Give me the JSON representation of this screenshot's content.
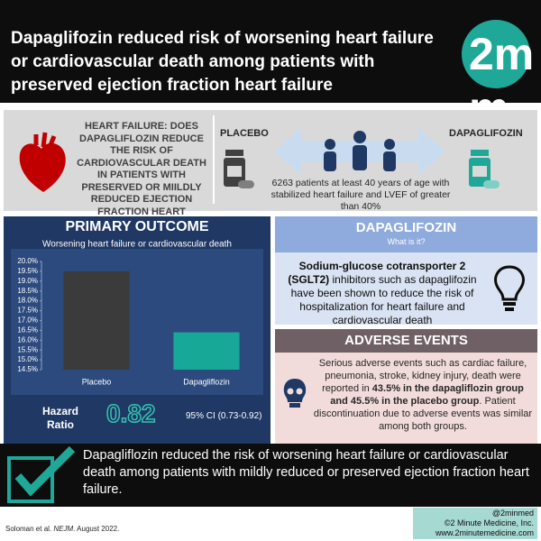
{
  "header": {
    "title": "Dapaglifozin reduced risk of worsening heart failure or cardiovascular death among patients with preserved ejection fraction heart failure",
    "logo": "2m m"
  },
  "study": {
    "question": "HEART FAILURE: DOES DAPAGLIFLOZIN REDUCE THE RISK OF CARDIOVASCULAR DEATH IN PATIENTS WITH PRESERVED OR MIILDLY REDUCED EJECTION FRACTION HEART FAILURE?",
    "placebo_label": "PLACEBO",
    "drug_label": "DAPAGLIFOZIN",
    "population": "6263 patients at least 40 years of age with stabilized heart failure and LVEF of greater than 40%"
  },
  "outcome": {
    "title": "PRIMARY OUTCOME",
    "hazard_label": "Hazard Ratio",
    "hazard_value": "0.82",
    "ci": "95% CI (0.73-0.92)"
  },
  "chart_data": {
    "type": "bar",
    "title": "Worsening heart failure or cardiovascular death",
    "categories": [
      "Placebo",
      "Dapagliflozin"
    ],
    "series": [
      {
        "name": "Primary outcome",
        "values": [
          19.5,
          16.4
        ]
      }
    ],
    "colors": [
      "#3b3b3b",
      "#17a898"
    ],
    "ylim": [
      14.5,
      20.0
    ],
    "yticks": [
      {
        "value": 14.5,
        "label": "14.5%"
      },
      {
        "value": 15.0,
        "label": "15.0%"
      },
      {
        "value": 15.5,
        "label": "15.5%"
      },
      {
        "value": 16.0,
        "label": "16.0%"
      },
      {
        "value": 16.5,
        "label": "16.5%"
      },
      {
        "value": 17.0,
        "label": "17.0%"
      },
      {
        "value": 17.5,
        "label": "17.5%"
      },
      {
        "value": 18.0,
        "label": "18.0%"
      },
      {
        "value": 18.5,
        "label": "18.5%"
      },
      {
        "value": 19.0,
        "label": "19.0%"
      },
      {
        "value": 19.5,
        "label": "19.5%"
      },
      {
        "value": 20.0,
        "label": "20.0%"
      }
    ],
    "grid": false
  },
  "drug_info": {
    "title": "DAPAGLIFOZIN",
    "subtitle": "What is it?",
    "text": [
      "Sodium-glucose cotransporter 2 (SGLT2)",
      " inhibitors such as dapaglifozin have been shown to reduce the risk of hospitalization for heart failure and cardiovascular death"
    ]
  },
  "adverse": {
    "title": "ADVERSE EVENTS",
    "text": [
      "Serious adverse events such as cardiac failure, pneumonia, stroke, kidney injury, death were reported in ",
      "43.5% in the dapagliflozin group and 45.5% in the placebo group",
      ". Patient discontinuation due to adverse events was similar among both groups."
    ]
  },
  "conclusion": "Dapagliflozin reduced the risk of worsening heart failure or cardiovascular death among patients with mildly reduced or preserved ejection fraction heart failure.",
  "footer": {
    "citation": [
      "Soloman et al. ",
      "NEJM",
      ". August 2022."
    ],
    "credits": [
      "@2minmed",
      "©2 Minute Medicine, Inc.",
      "www.2minutemedicine.com"
    ]
  }
}
